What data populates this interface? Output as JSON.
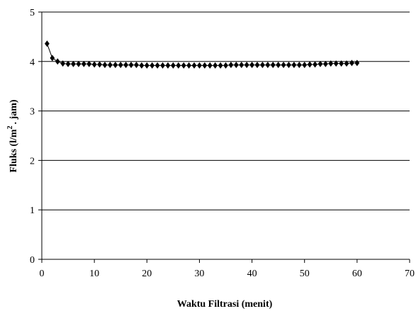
{
  "chart_data": {
    "type": "line",
    "title": "",
    "xlabel": "Waktu Filtrasi (menit)",
    "ylabel_parts": {
      "before_super": "Fluks (l/m",
      "super": "2",
      "after_super": ". jam)"
    },
    "xlim": [
      0,
      70
    ],
    "ylim": [
      0,
      5
    ],
    "x_ticks": [
      "0",
      "10",
      "20",
      "30",
      "40",
      "50",
      "60",
      "70"
    ],
    "y_ticks": [
      "0",
      "1",
      "2",
      "3",
      "4",
      "5"
    ],
    "grid": "horizontal",
    "marker": "diamond",
    "line_color": "#000000",
    "series": [
      {
        "x": [
          1,
          2,
          3,
          4,
          5,
          6,
          7,
          8,
          9,
          10,
          11,
          12,
          13,
          14,
          15,
          16,
          17,
          18,
          19,
          20,
          21,
          22,
          23,
          24,
          25,
          26,
          27,
          28,
          29,
          30,
          31,
          32,
          33,
          34,
          35,
          36,
          37,
          38,
          39,
          40,
          41,
          42,
          43,
          44,
          45,
          46,
          47,
          48,
          49,
          50,
          51,
          52,
          53,
          54,
          55,
          56,
          57,
          58,
          59,
          60
        ],
        "y": [
          4.36,
          4.07,
          4.0,
          3.96,
          3.95,
          3.95,
          3.95,
          3.95,
          3.95,
          3.94,
          3.94,
          3.93,
          3.93,
          3.93,
          3.93,
          3.93,
          3.93,
          3.93,
          3.92,
          3.92,
          3.92,
          3.92,
          3.92,
          3.92,
          3.92,
          3.92,
          3.92,
          3.92,
          3.92,
          3.92,
          3.92,
          3.92,
          3.92,
          3.92,
          3.92,
          3.93,
          3.93,
          3.93,
          3.93,
          3.93,
          3.93,
          3.93,
          3.93,
          3.93,
          3.93,
          3.93,
          3.93,
          3.93,
          3.93,
          3.93,
          3.94,
          3.94,
          3.95,
          3.95,
          3.96,
          3.96,
          3.96,
          3.96,
          3.97,
          3.97
        ]
      }
    ]
  }
}
